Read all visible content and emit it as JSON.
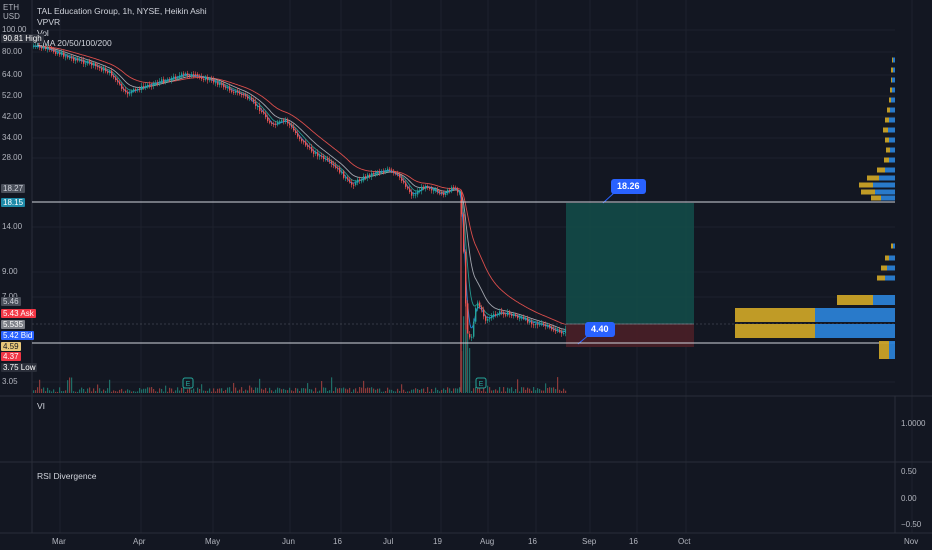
{
  "header": {
    "title": "TAL Education Group, 1h, NYSE, Heikin Ashi",
    "indicators": [
      "VPVR",
      "Vol",
      "EMA 20/50/100/200"
    ],
    "currency_top": "ETH",
    "currency_bottom": "USD"
  },
  "price_scale": {
    "labels": [
      {
        "text": "100.00",
        "y": 30
      },
      {
        "text": "80.00",
        "y": 52
      },
      {
        "text": "64.00",
        "y": 75
      },
      {
        "text": "52.00",
        "y": 96
      },
      {
        "text": "42.00",
        "y": 117
      },
      {
        "text": "34.00",
        "y": 138
      },
      {
        "text": "28.00",
        "y": 158
      },
      {
        "text": "14.00",
        "y": 227
      },
      {
        "text": "9.00",
        "y": 272
      },
      {
        "text": "7.00",
        "y": 297
      },
      {
        "text": "3.05",
        "y": 382
      }
    ],
    "tags": [
      {
        "text": "90.81",
        "suffix": "High",
        "color": "#2a2e39",
        "fg": "#ffffff",
        "y": 38
      },
      {
        "text": "18.27",
        "suffix": "",
        "color": "#4a4f5a",
        "fg": "#d1d4dc",
        "y": 188
      },
      {
        "text": "18.15",
        "suffix": "",
        "color": "#1e8aa8",
        "fg": "#ffffff",
        "y": 202
      },
      {
        "text": "5.46",
        "suffix": "",
        "color": "#4a4f5a",
        "fg": "#d1d4dc",
        "y": 301
      },
      {
        "text": "5.43",
        "suffix": "Ask",
        "color": "#f23645",
        "fg": "#ffffff",
        "y": 313
      },
      {
        "text": "5.535",
        "suffix": "",
        "color": "#7c7f87",
        "fg": "#ffffff",
        "y": 324
      },
      {
        "text": "5.42",
        "suffix": "Bid",
        "color": "#2962ff",
        "fg": "#ffffff",
        "y": 335
      },
      {
        "text": "4.59",
        "suffix": "",
        "color": "#e8c77a",
        "fg": "#131722",
        "y": 346
      },
      {
        "text": "4.37",
        "suffix": "",
        "color": "#f23645",
        "fg": "#ffffff",
        "y": 356
      },
      {
        "text": "3.75",
        "suffix": "Low",
        "color": "#2a2e39",
        "fg": "#ffffff",
        "y": 367
      }
    ]
  },
  "time_axis": [
    {
      "label": "Mar",
      "x": 60
    },
    {
      "label": "Apr",
      "x": 141
    },
    {
      "label": "May",
      "x": 213
    },
    {
      "label": "Jun",
      "x": 290
    },
    {
      "label": "16",
      "x": 341
    },
    {
      "label": "Jul",
      "x": 391
    },
    {
      "label": "19",
      "x": 441
    },
    {
      "label": "Aug",
      "x": 488
    },
    {
      "label": "16",
      "x": 536
    },
    {
      "label": "Sep",
      "x": 590
    },
    {
      "label": "16",
      "x": 637
    },
    {
      "label": "Oct",
      "x": 686
    },
    {
      "label": "Nov",
      "x": 912
    }
  ],
  "position": {
    "target_label": "18.26",
    "stop_label": "4.40",
    "target_color": "#134e4a",
    "stop_color": "#4a1f27"
  },
  "panes": {
    "vi": {
      "title": "VI",
      "scale": "1.0000"
    },
    "rsi": {
      "title": "RSI Divergence",
      "scale": [
        "0.50",
        "0.00",
        "−0.50"
      ]
    }
  },
  "colors": {
    "background": "#131722",
    "grid": "#1e222d",
    "up": "#26a69a",
    "down": "#ef5350",
    "ema20": "#2196f3",
    "ema50": "#26a69a",
    "ema100": "#b2b5be",
    "ema200": "#ef5350",
    "vpvr_up": "#2a7fd4",
    "vpvr_down": "#c9a227"
  },
  "chart_data": {
    "type": "line",
    "x": [
      "Mar",
      "Apr",
      "May",
      "Jun",
      "Jul",
      "Aug",
      "Sep"
    ],
    "series": [],
    "note_values": {
      "high": 90.81,
      "low": 3.75,
      "target": 18.26,
      "stop": 4.4
    }
  }
}
